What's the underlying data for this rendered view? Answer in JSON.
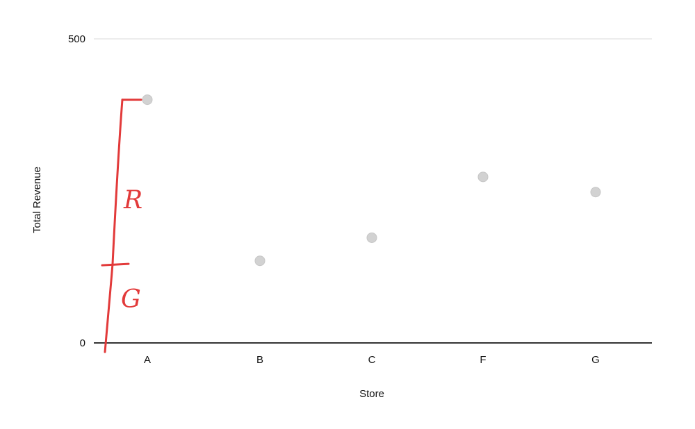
{
  "chart_data": {
    "type": "scatter",
    "title": "",
    "xlabel": "Store",
    "ylabel": "Total Revenue",
    "categories": [
      "A",
      "B",
      "C",
      "F",
      "G"
    ],
    "series": [
      {
        "values": [
          400,
          135,
          173,
          273,
          248
        ]
      }
    ],
    "ylim": [
      0,
      500
    ],
    "y_ticks": [
      "0",
      "500"
    ],
    "grid": false,
    "point_color": "#d2d2d2",
    "baseline_color": "#333333",
    "annotation": {
      "color": "#e23a3a",
      "top_value": 400,
      "split_value": 130,
      "upper_label": "R",
      "lower_label": "G"
    }
  }
}
